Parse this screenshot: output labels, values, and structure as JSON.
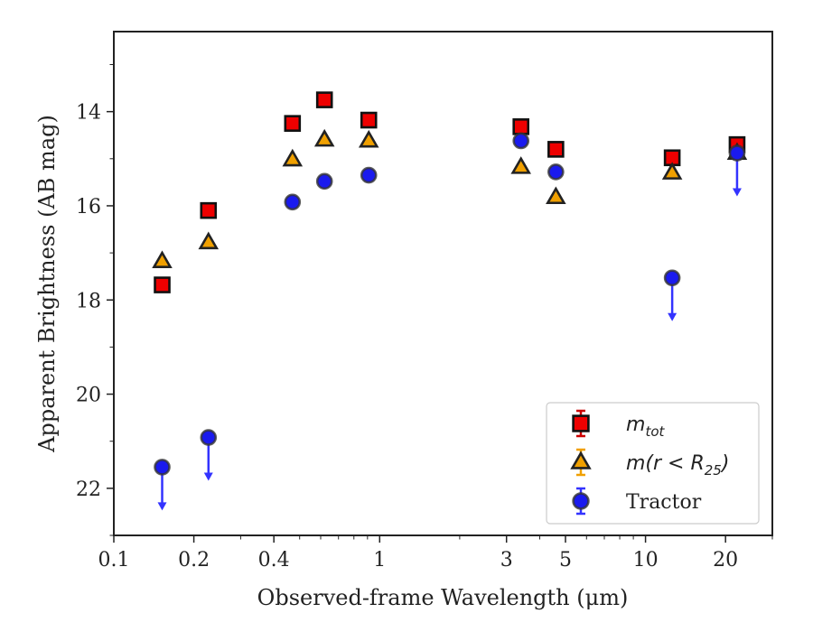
{
  "chart_data": {
    "type": "scatter",
    "xlabel": "Observed-frame Wavelength (μm)",
    "ylabel": "Apparent Brightness (AB mag)",
    "xscale": "log",
    "xlim": [
      0.1,
      30
    ],
    "ylim": [
      23,
      12.3
    ],
    "y_inverted": true,
    "grid": false,
    "legend_position": "lower-right",
    "x_ticks": [
      {
        "value": 0.1,
        "label": "0.1"
      },
      {
        "value": 0.2,
        "label": "0.2"
      },
      {
        "value": 0.4,
        "label": "0.4"
      },
      {
        "value": 1,
        "label": "1"
      },
      {
        "value": 3,
        "label": "3"
      },
      {
        "value": 5,
        "label": "5"
      },
      {
        "value": 10,
        "label": "10"
      },
      {
        "value": 20,
        "label": "20"
      }
    ],
    "y_ticks": [
      {
        "value": 14,
        "label": "14"
      },
      {
        "value": 16,
        "label": "16"
      },
      {
        "value": 18,
        "label": "18"
      },
      {
        "value": 20,
        "label": "20"
      },
      {
        "value": 22,
        "label": "22"
      }
    ],
    "series": [
      {
        "name": "m_tot",
        "legend_main": "m",
        "legend_sub": "tot",
        "marker": "square",
        "color": "#ee0000",
        "edge": "#111111",
        "error_color": "#cc0000",
        "points": [
          {
            "x": 0.152,
            "y": 17.68
          },
          {
            "x": 0.227,
            "y": 16.1
          },
          {
            "x": 0.47,
            "y": 14.25
          },
          {
            "x": 0.62,
            "y": 13.75
          },
          {
            "x": 0.91,
            "y": 14.18
          },
          {
            "x": 3.4,
            "y": 14.32
          },
          {
            "x": 4.6,
            "y": 14.8
          },
          {
            "x": 12.6,
            "y": 14.98
          },
          {
            "x": 22.1,
            "y": 14.7
          }
        ]
      },
      {
        "name": "m(r < R25)",
        "legend_main": "m(r < R",
        "legend_sub": "25",
        "legend_close": ")",
        "marker": "triangle",
        "color": "#f0a000",
        "edge": "#222222",
        "error_color": "#f0a000",
        "points": [
          {
            "x": 0.152,
            "y": 17.18
          },
          {
            "x": 0.227,
            "y": 16.78
          },
          {
            "x": 0.47,
            "y": 15.02
          },
          {
            "x": 0.62,
            "y": 14.6
          },
          {
            "x": 0.91,
            "y": 14.62
          },
          {
            "x": 3.4,
            "y": 15.18
          },
          {
            "x": 4.6,
            "y": 15.82
          },
          {
            "x": 12.6,
            "y": 15.3
          },
          {
            "x": 22.1,
            "y": 14.88
          }
        ]
      },
      {
        "name": "Tractor",
        "legend_main": "Tractor",
        "marker": "circle",
        "color": "#1a1aee",
        "edge": "#333333",
        "error_color": "#3333ff",
        "points": [
          {
            "x": 0.152,
            "y": 21.55,
            "upper_limit": true
          },
          {
            "x": 0.227,
            "y": 20.92,
            "upper_limit": true
          },
          {
            "x": 0.47,
            "y": 15.92
          },
          {
            "x": 0.62,
            "y": 15.48
          },
          {
            "x": 0.91,
            "y": 15.35
          },
          {
            "x": 3.4,
            "y": 14.62
          },
          {
            "x": 4.6,
            "y": 15.28
          },
          {
            "x": 12.6,
            "y": 17.53,
            "upper_limit": true
          },
          {
            "x": 22.1,
            "y": 14.88,
            "upper_limit": true
          }
        ]
      }
    ]
  }
}
